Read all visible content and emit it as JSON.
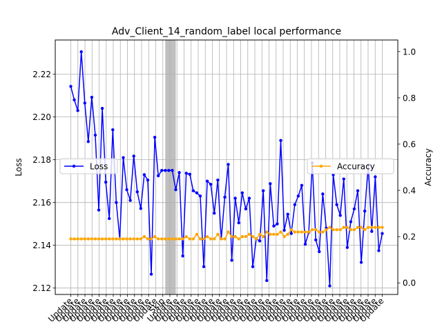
{
  "chart_data": {
    "type": "line",
    "title": "Adv_Client_14_random_label local performance",
    "xlabel": "",
    "ylabel_left": "Loss",
    "ylabel_right": "Accuracy",
    "ylim_left": [
      2.117,
      2.236
    ],
    "ylim_right": [
      -0.05,
      1.05
    ],
    "yticks_left": [
      "2.12",
      "2.14",
      "2.16",
      "2.18",
      "2.20",
      "2.22"
    ],
    "yticks_right": [
      "0.0",
      "0.2",
      "0.4",
      "0.6",
      "0.8",
      "1.0"
    ],
    "grid": true,
    "x_tick_labels": [
      "Update",
      "Update",
      "Update",
      "Update",
      "Update",
      "Update",
      "Update",
      "Update",
      "Update",
      "Update",
      "Update",
      "Update",
      "Update",
      "Skip",
      "Update",
      "Update",
      "Update",
      "Update",
      "Update",
      "Update",
      "Update",
      "Update",
      "Update",
      "Update",
      "Update",
      "Update",
      "Update",
      "Update",
      "Update",
      "Update",
      "Update",
      "Update",
      "Update",
      "Update",
      "Update",
      "Update",
      "Update",
      "Update",
      "Update",
      "Update",
      "Update",
      "Update",
      "Update",
      "Update",
      "Update"
    ],
    "skip_span": [
      27,
      30
    ],
    "series": [
      {
        "name": "Loss",
        "axis": "left",
        "color": "#0000ff",
        "values": [
          2.2143,
          2.208,
          2.203,
          2.2305,
          2.2065,
          2.1885,
          2.2092,
          2.1915,
          2.1565,
          2.204,
          2.1695,
          2.1525,
          2.194,
          2.16,
          2.143,
          2.181,
          2.166,
          2.161,
          2.1817,
          2.165,
          2.1572,
          2.173,
          2.1705,
          2.1265,
          2.1905,
          2.1725,
          2.175,
          2.175,
          2.175,
          2.175,
          2.166,
          2.174,
          2.135,
          2.1737,
          2.1732,
          2.1655,
          2.1645,
          2.163,
          2.13,
          2.17,
          2.1685,
          2.155,
          2.1705,
          2.143,
          2.1625,
          2.1778,
          2.133,
          2.162,
          2.1505,
          2.1645,
          2.157,
          2.162,
          2.13,
          2.143,
          2.142,
          2.1655,
          2.1235,
          2.1688,
          2.149,
          2.15,
          2.189,
          2.147,
          2.1545,
          2.1455,
          2.159,
          2.163,
          2.168,
          2.1405,
          2.146,
          2.1785,
          2.1425,
          2.137,
          2.164,
          2.148,
          2.121,
          2.173,
          2.159,
          2.154,
          2.171,
          2.139,
          2.151,
          2.157,
          2.1655,
          2.132,
          2.156,
          2.1775,
          2.1465,
          2.172,
          2.1375,
          2.1455
        ]
      },
      {
        "name": "Accuracy",
        "axis": "right",
        "color": "#ffa500",
        "values": [
          0.19,
          0.19,
          0.19,
          0.19,
          0.19,
          0.19,
          0.19,
          0.19,
          0.19,
          0.19,
          0.19,
          0.19,
          0.19,
          0.19,
          0.19,
          0.19,
          0.19,
          0.19,
          0.19,
          0.19,
          0.19,
          0.2,
          0.19,
          0.19,
          0.2,
          0.19,
          0.19,
          0.19,
          0.19,
          0.19,
          0.19,
          0.19,
          0.19,
          0.2,
          0.19,
          0.19,
          0.21,
          0.19,
          0.19,
          0.2,
          0.19,
          0.19,
          0.21,
          0.19,
          0.19,
          0.22,
          0.2,
          0.2,
          0.19,
          0.2,
          0.2,
          0.21,
          0.2,
          0.19,
          0.21,
          0.2,
          0.22,
          0.21,
          0.21,
          0.21,
          0.22,
          0.2,
          0.21,
          0.23,
          0.22,
          0.22,
          0.22,
          0.22,
          0.22,
          0.23,
          0.23,
          0.22,
          0.22,
          0.23,
          0.24,
          0.23,
          0.23,
          0.23,
          0.24,
          0.24,
          0.23,
          0.23,
          0.24,
          0.24,
          0.23,
          0.24,
          0.24,
          0.24,
          0.24,
          0.24
        ]
      }
    ]
  }
}
